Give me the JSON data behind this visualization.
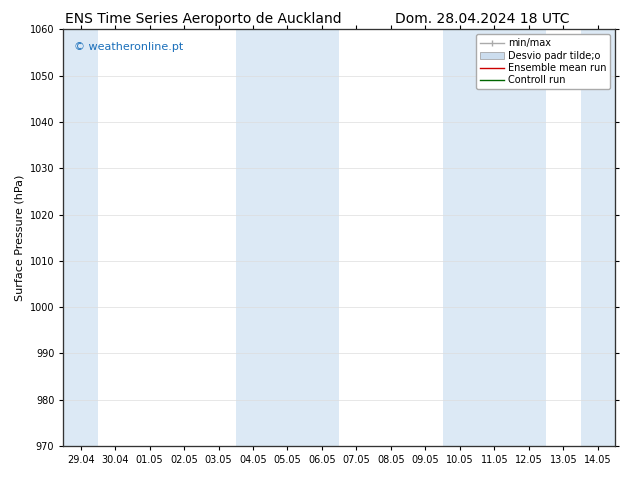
{
  "title_left": "ENS Time Series Aeroporto de Auckland",
  "title_right": "Dom. 28.04.2024 18 UTC",
  "ylabel": "Surface Pressure (hPa)",
  "ylim": [
    970,
    1060
  ],
  "yticks": [
    970,
    980,
    990,
    1000,
    1010,
    1020,
    1030,
    1040,
    1050,
    1060
  ],
  "xlabels": [
    "29.04",
    "30.04",
    "01.05",
    "02.05",
    "03.05",
    "04.05",
    "05.05",
    "06.05",
    "07.05",
    "08.05",
    "09.05",
    "10.05",
    "11.05",
    "12.05",
    "13.05",
    "14.05"
  ],
  "shade_bands_indices": [
    0,
    5,
    6,
    7,
    11,
    12,
    13,
    15
  ],
  "shade_color": "#dce9f5",
  "watermark": "© weatheronline.pt",
  "watermark_color": "#1a6fba",
  "legend_entries": [
    {
      "label": "min/max",
      "color": "#aaaaaa",
      "lw": 1.0,
      "type": "minmax"
    },
    {
      "label": "Desvio padr tilde;o",
      "color": "#ccddee",
      "type": "fill"
    },
    {
      "label": "Ensemble mean run",
      "color": "#cc0000",
      "lw": 1.0,
      "type": "line"
    },
    {
      "label": "Controll run",
      "color": "#006600",
      "lw": 1.0,
      "type": "line"
    }
  ],
  "bg_color": "#ffffff",
  "plot_bg_color": "#ffffff",
  "grid_color": "#dddddd",
  "title_fontsize": 10,
  "axis_fontsize": 8,
  "tick_fontsize": 7
}
